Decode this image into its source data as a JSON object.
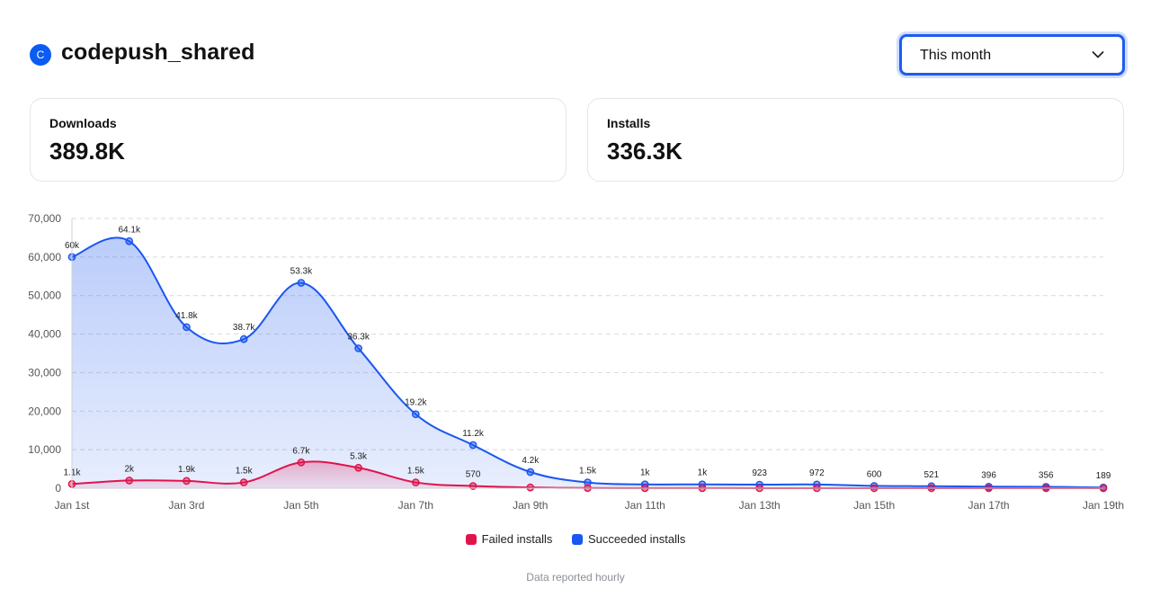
{
  "header": {
    "app_initial": "C",
    "app_name": "codepush_shared",
    "range_selected": "This month"
  },
  "stats": {
    "downloads_label": "Downloads",
    "downloads_value": "389.8K",
    "installs_label": "Installs",
    "installs_value": "336.3K"
  },
  "chart_data": {
    "type": "area",
    "x": [
      "Jan 1st",
      "Jan 2nd",
      "Jan 3rd",
      "Jan 4th",
      "Jan 5th",
      "Jan 6th",
      "Jan 7th",
      "Jan 8th",
      "Jan 9th",
      "Jan 10th",
      "Jan 11th",
      "Jan 12th",
      "Jan 13th",
      "Jan 14th",
      "Jan 15th",
      "Jan 16th",
      "Jan 17th",
      "Jan 18th",
      "Jan 19th"
    ],
    "tick_labels": [
      "Jan 1st",
      "",
      "Jan 3rd",
      "",
      "Jan 5th",
      "",
      "Jan 7th",
      "",
      "Jan 9th",
      "",
      "Jan 11th",
      "",
      "Jan 13th",
      "",
      "Jan 15th",
      "",
      "Jan 17th",
      "",
      "Jan 19th"
    ],
    "ylim": [
      0,
      70000
    ],
    "yticks": [
      0,
      10000,
      20000,
      30000,
      40000,
      50000,
      60000,
      70000
    ],
    "ytick_labels": [
      "0",
      "10,000",
      "20,000",
      "30,000",
      "40,000",
      "50,000",
      "60,000",
      "70,000"
    ],
    "grid": true,
    "legend": "bottom-center",
    "series": [
      {
        "name": "Succeeded installs",
        "color": "#1a56f0",
        "values": [
          60000,
          64100,
          41800,
          38700,
          53300,
          36300,
          19200,
          11200,
          4200,
          1500,
          1000,
          1000,
          923,
          972,
          600,
          521,
          396,
          356,
          189
        ],
        "labels": [
          "60k",
          "64.1k",
          "41.8k",
          "38.7k",
          "53.3k",
          "36.3k",
          "19.2k",
          "11.2k",
          "4.2k",
          "1.5k",
          "1k",
          "1k",
          "923",
          "972",
          "600",
          "521",
          "396",
          "356",
          "189"
        ]
      },
      {
        "name": "Failed installs",
        "color": "#e0144c",
        "values": [
          1100,
          2000,
          1900,
          1500,
          6700,
          5300,
          1500,
          570,
          200,
          50,
          20,
          20,
          10,
          10,
          5,
          5,
          5,
          5,
          5
        ],
        "labels": [
          "1.1k",
          "2k",
          "1.9k",
          "1.5k",
          "6.7k",
          "5.3k",
          "1.5k",
          "570",
          "",
          "",
          "",
          "",
          "",
          "",
          "",
          "",
          "",
          "",
          ""
        ]
      }
    ]
  },
  "footer": {
    "note": "Data reported hourly"
  }
}
